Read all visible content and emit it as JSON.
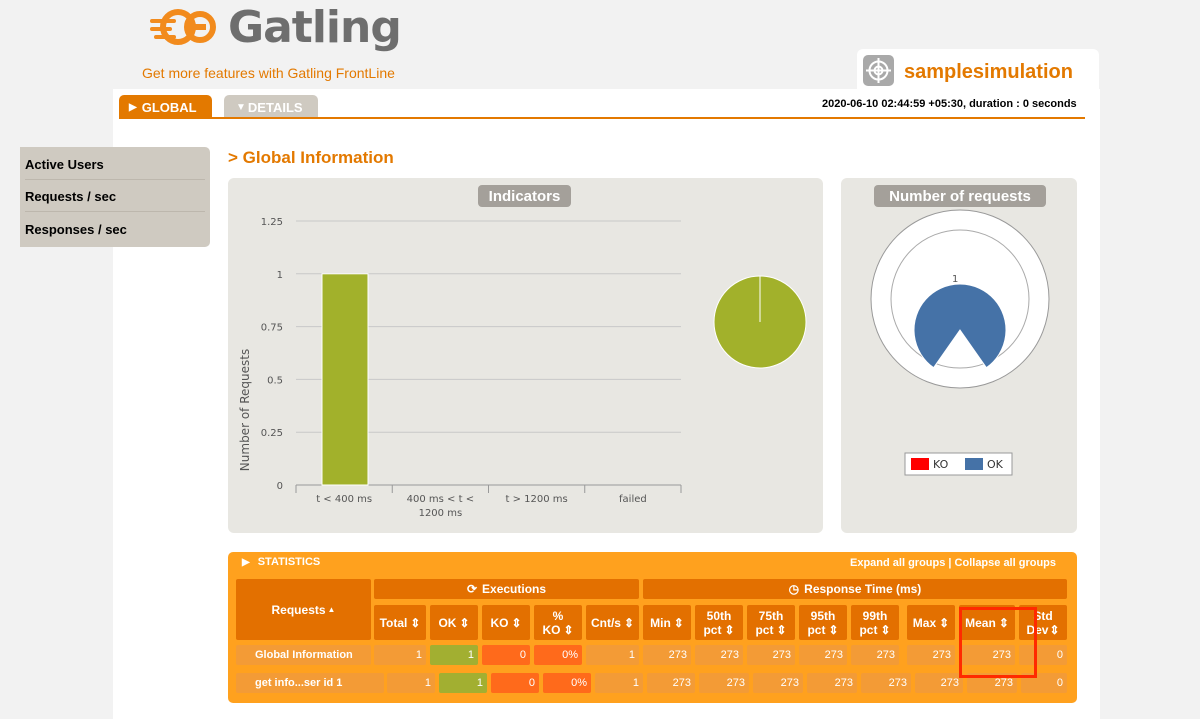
{
  "header": {
    "logo_text": "Gatling",
    "frontline_link": "Get more features with Gatling FrontLine",
    "simulation_name": "samplesimulation",
    "simulation_meta": "2020-06-10 02:44:59 +05:30, duration : 0 seconds"
  },
  "tabs": {
    "global": "GLOBAL",
    "details": "DETAILS"
  },
  "side_menu": [
    "Active Users",
    "Requests / sec",
    "Responses / sec"
  ],
  "section_title": "> Global Information",
  "indicators": {
    "title": "Indicators",
    "chart_data": {
      "type": "bar",
      "ylabel": "Number of Requests",
      "categories": [
        "t < 400 ms",
        "400 ms < t < 1200 ms",
        "t > 1200 ms",
        "failed"
      ],
      "values": [
        1,
        0,
        0,
        0
      ],
      "y_ticks": [
        "0",
        "0.25",
        "0.5",
        "0.75",
        "1",
        "1.25"
      ],
      "ylim": [
        0,
        1.25
      ],
      "bar_color": "#a2b12b",
      "grid": true
    },
    "pie": {
      "type": "pie",
      "values": [
        1
      ],
      "color": "#a2b12b"
    }
  },
  "number_of_requests": {
    "title": "Number of requests",
    "chart_data": {
      "type": "pie",
      "label": "1",
      "legend": [
        {
          "name": "KO",
          "color": "#ff0000"
        },
        {
          "name": "OK",
          "color": "#4572a7"
        }
      ]
    }
  },
  "statistics": {
    "title": "STATISTICS",
    "expand_links": "Expand all groups | Collapse all groups",
    "group_executions": "Executions",
    "group_response_time": "Response Time (ms)",
    "columns": {
      "requests": "Requests",
      "total": "Total",
      "ok": "OK",
      "ko": "KO",
      "pct_ko_1": "%",
      "pct_ko_2": "KO",
      "cnt_s": "Cnt/s",
      "min": "Min",
      "p50_1": "50th",
      "p50_2": "pct",
      "p75_1": "75th",
      "p75_2": "pct",
      "p95_1": "95th",
      "p95_2": "pct",
      "p99_1": "99th",
      "p99_2": "pct",
      "max": "Max",
      "mean": "Mean",
      "std_1": "Std",
      "std_2": "Dev"
    },
    "rows": [
      {
        "name": "Global Information",
        "total": "1",
        "ok": "1",
        "ko": "0",
        "pct_ko": "0%",
        "cnt_s": "1",
        "min": "273",
        "p50": "273",
        "p75": "273",
        "p95": "273",
        "p99": "273",
        "max": "273",
        "mean": "273",
        "std": "0"
      },
      {
        "name": "get info...ser id 1",
        "total": "1",
        "ok": "1",
        "ko": "0",
        "pct_ko": "0%",
        "cnt_s": "1",
        "min": "273",
        "p50": "273",
        "p75": "273",
        "p95": "273",
        "p99": "273",
        "max": "273",
        "mean": "273",
        "std": "0"
      }
    ]
  },
  "colors": {
    "accent": "#e37900",
    "stats_bg": "#ffa11e",
    "ok": "#a2af31",
    "ko": "#ff6a1b",
    "highlight": "#ff2a00"
  }
}
